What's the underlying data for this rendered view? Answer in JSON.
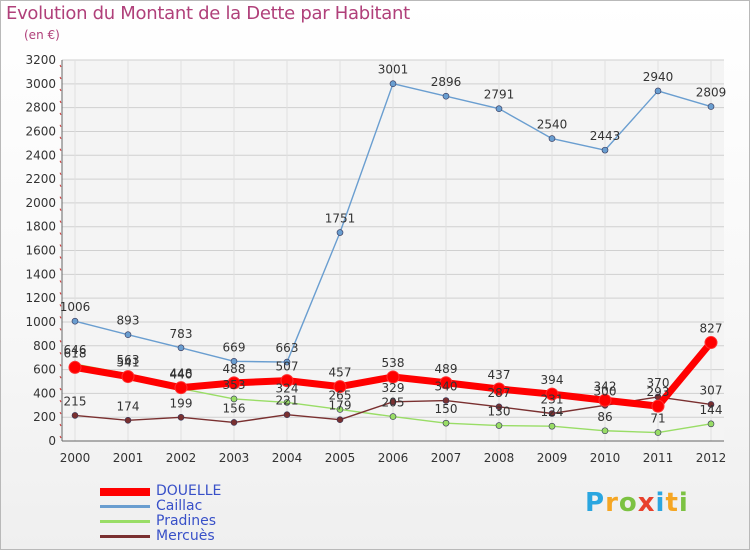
{
  "header": {
    "title": "Evolution du Montant de la Dette par Habitant",
    "subtitle": "(en €)"
  },
  "logo": {
    "letters": [
      "P",
      "r",
      "o",
      "x",
      "i",
      "t",
      "i"
    ],
    "colors": [
      "#2aa6e0",
      "#f5a623",
      "#7cc242",
      "#e8412c",
      "#2aa6e0",
      "#f5a623",
      "#7cc242"
    ]
  },
  "chart_data": {
    "type": "line",
    "title": "Evolution du Montant de la Dette par Habitant",
    "subtitle": "(en €)",
    "xlabel": "",
    "ylabel": "",
    "x": [
      "2000",
      "2001",
      "2002",
      "2003",
      "2004",
      "2005",
      "2006",
      "2007",
      "2008",
      "2009",
      "2010",
      "2011",
      "2012"
    ],
    "ylim": [
      0,
      3200
    ],
    "yticks": [
      0,
      200,
      400,
      600,
      800,
      1000,
      1200,
      1400,
      1600,
      1800,
      2000,
      2200,
      2400,
      2600,
      2800,
      3000,
      3200
    ],
    "grid": true,
    "legend_position": "bottom-left",
    "series": [
      {
        "name": "DOUELLE",
        "color": "#ff0000",
        "values": [
          618,
          541,
          448,
          488,
          507,
          457,
          538,
          489,
          437,
          394,
          342,
          293,
          827
        ]
      },
      {
        "name": "Caillac",
        "color": "#6a9ed0",
        "values": [
          1006,
          893,
          783,
          669,
          663,
          1751,
          3001,
          2896,
          2791,
          2540,
          2443,
          2940,
          2809
        ]
      },
      {
        "name": "Pradines",
        "color": "#99dd66",
        "values": [
          646,
          563,
          440,
          353,
          324,
          265,
          205,
          150,
          130,
          124,
          86,
          71,
          144
        ]
      },
      {
        "name": "Mercuès",
        "color": "#7a3030",
        "values": [
          215,
          174,
          199,
          156,
          221,
          179,
          329,
          340,
          287,
          231,
          300,
          370,
          307
        ]
      }
    ]
  }
}
